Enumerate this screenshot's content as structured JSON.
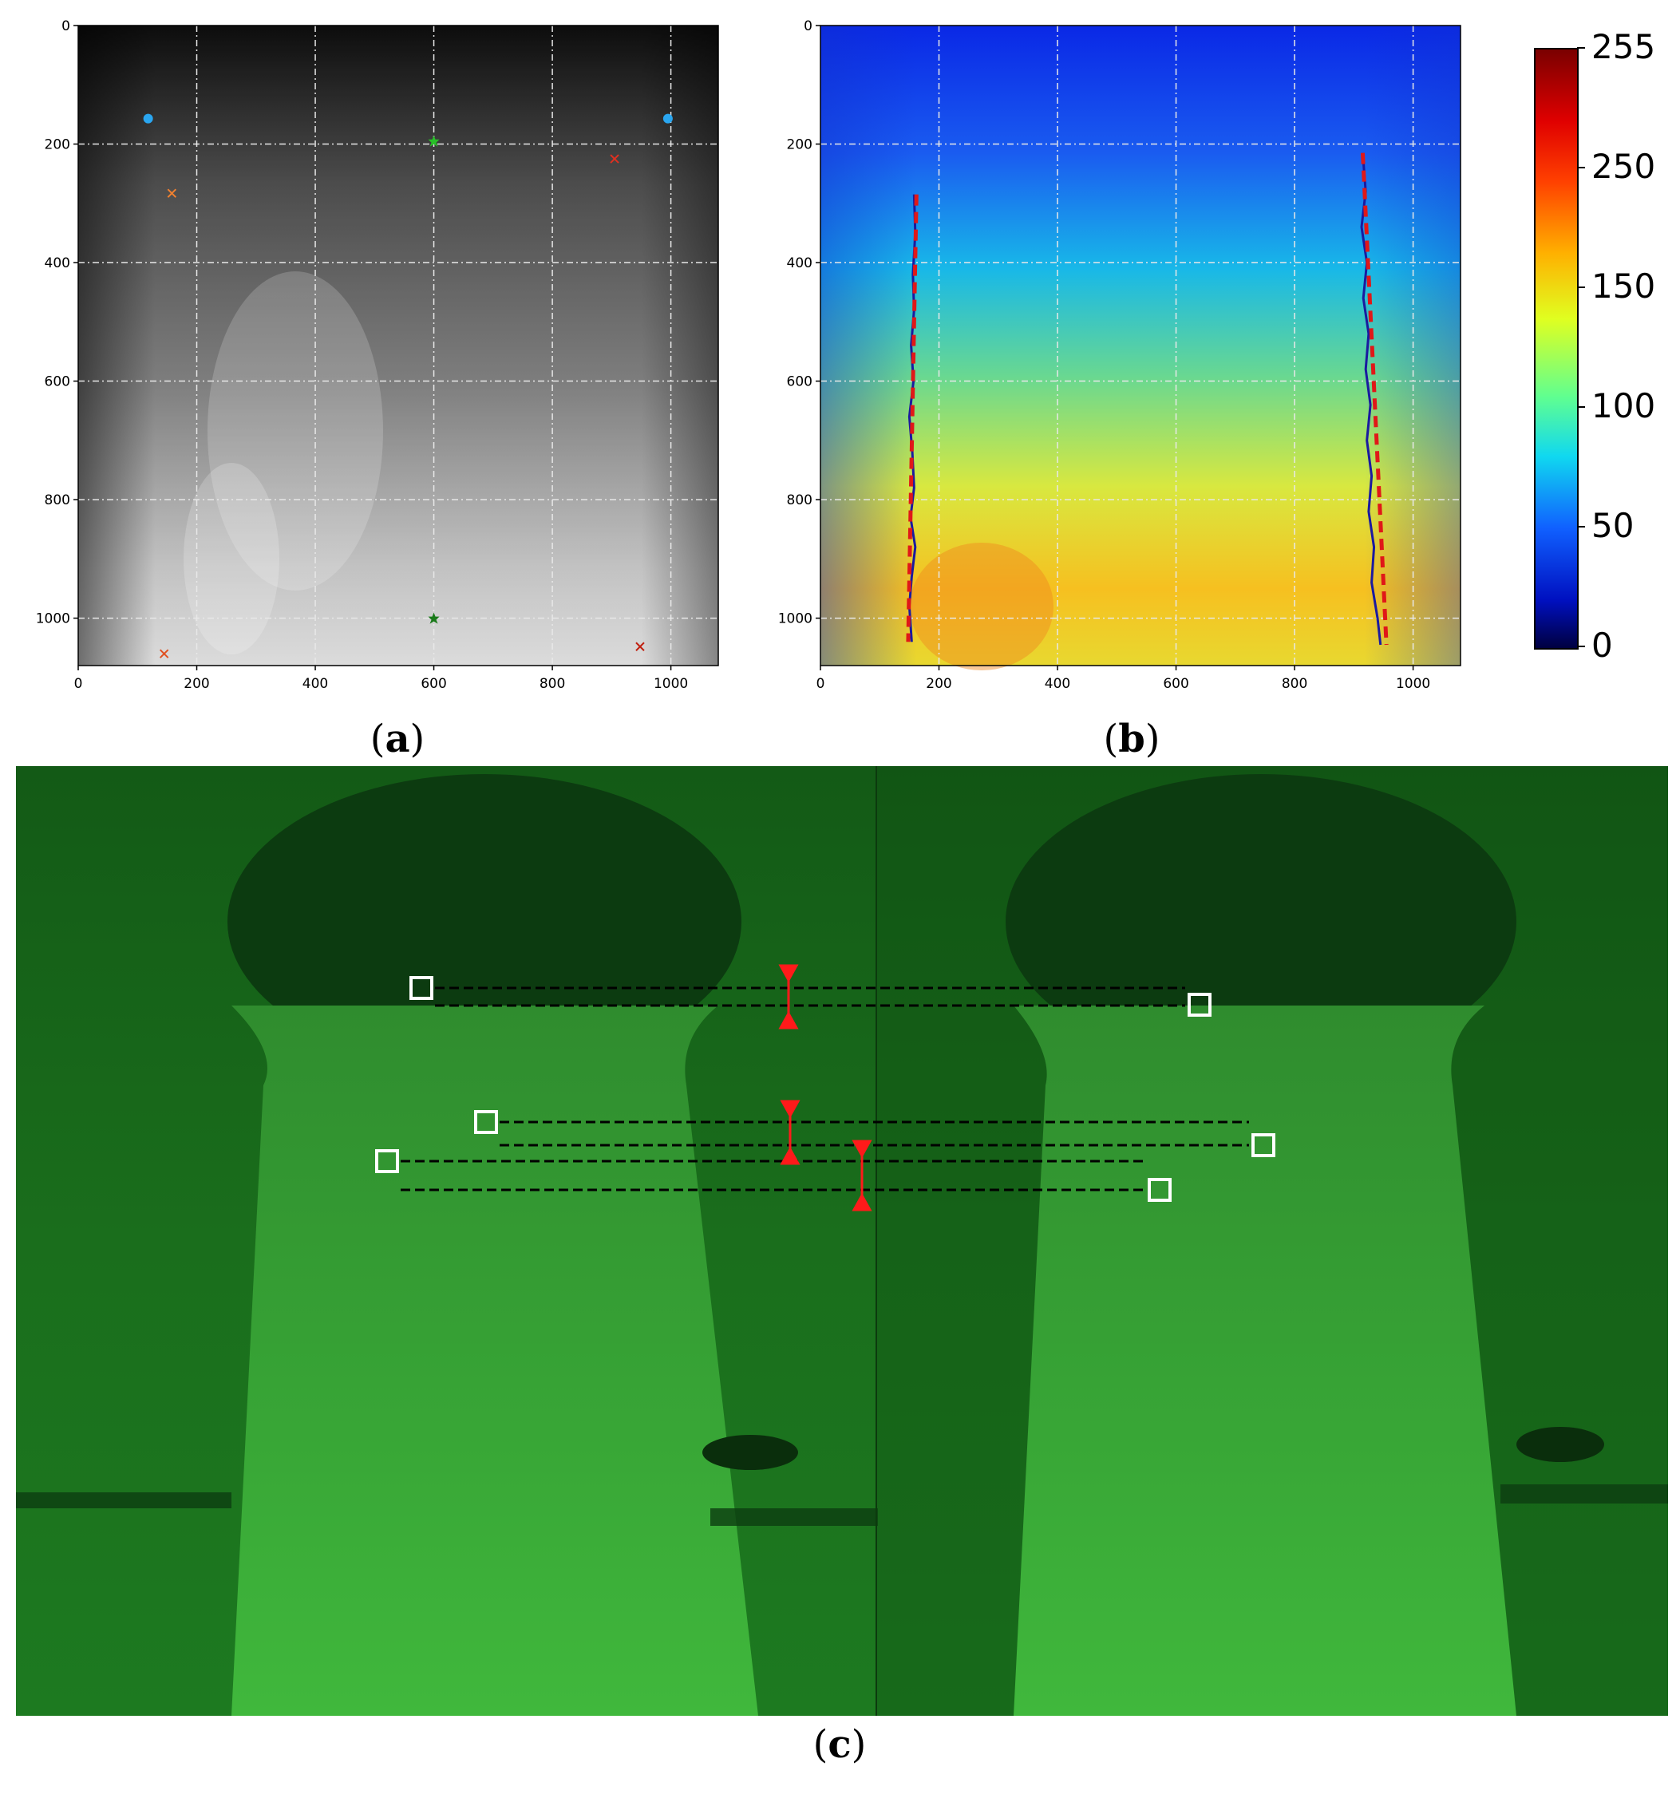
{
  "panel_a": {
    "axis": {
      "x_ticks": [
        "0",
        "200",
        "400",
        "600",
        "800",
        "1000"
      ],
      "y_ticks": [
        "0",
        "200",
        "400",
        "600",
        "800",
        "1000"
      ],
      "xlim": [
        0,
        1080
      ],
      "ylim": [
        1080,
        0
      ]
    },
    "markers": [
      {
        "x": 118,
        "y": 157,
        "style": "dot",
        "color": "#2aa6f0"
      },
      {
        "x": 995,
        "y": 157,
        "style": "dot",
        "color": "#2aa6f0"
      },
      {
        "x": 600,
        "y": 195,
        "style": "star",
        "color": "#28c028"
      },
      {
        "x": 600,
        "y": 1000,
        "style": "star",
        "color": "#1a7a1a"
      },
      {
        "x": 905,
        "y": 225,
        "style": "x",
        "color": "#e03020"
      },
      {
        "x": 948,
        "y": 1048,
        "style": "x",
        "color": "#c02010"
      },
      {
        "x": 158,
        "y": 283,
        "style": "x",
        "color": "#f08030"
      },
      {
        "x": 145,
        "y": 1060,
        "style": "x",
        "color": "#e05020"
      }
    ],
    "caption": {
      "letter": "a",
      "open": "(",
      "close": ")"
    }
  },
  "panel_b": {
    "axis": {
      "x_ticks": [
        "0",
        "200",
        "400",
        "600",
        "800",
        "1000"
      ],
      "y_ticks": [
        "0",
        "200",
        "400",
        "600",
        "800",
        "1000"
      ],
      "xlim": [
        0,
        1080
      ],
      "ylim": [
        1080,
        0
      ]
    },
    "left_edge_blue": [
      [
        158,
        285
      ],
      [
        160,
        350
      ],
      [
        156,
        420
      ],
      [
        158,
        480
      ],
      [
        153,
        540
      ],
      [
        157,
        600
      ],
      [
        150,
        660
      ],
      [
        155,
        720
      ],
      [
        158,
        780
      ],
      [
        152,
        830
      ],
      [
        160,
        880
      ],
      [
        154,
        930
      ],
      [
        150,
        980
      ],
      [
        154,
        1040
      ]
    ],
    "left_edge_red": [
      [
        162,
        285
      ],
      [
        148,
        1040
      ]
    ],
    "right_edge_blue": [
      [
        915,
        215
      ],
      [
        920,
        280
      ],
      [
        913,
        340
      ],
      [
        922,
        400
      ],
      [
        916,
        460
      ],
      [
        925,
        520
      ],
      [
        920,
        580
      ],
      [
        928,
        640
      ],
      [
        922,
        700
      ],
      [
        930,
        760
      ],
      [
        925,
        820
      ],
      [
        934,
        880
      ],
      [
        930,
        940
      ],
      [
        940,
        1000
      ],
      [
        945,
        1045
      ]
    ],
    "right_edge_red": [
      [
        915,
        215
      ],
      [
        955,
        1045
      ]
    ],
    "colorbar": {
      "ticks": [
        "255",
        "250",
        "150",
        "100",
        "50",
        "0"
      ]
    },
    "caption": {
      "letter": "b",
      "open": "(",
      "close": ")"
    }
  },
  "panel_c": {
    "caption": {
      "letter": "c",
      "open": "(",
      "close": ")"
    },
    "colors": {
      "bg": "#1f6a1f",
      "marker": "#ffffff",
      "arrow": "#ff1a1a"
    }
  }
}
